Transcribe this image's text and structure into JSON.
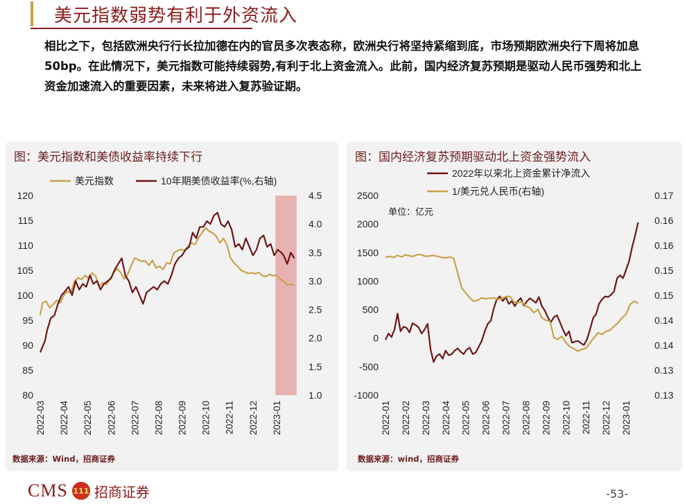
{
  "page": {
    "title": "美元指数弱势有利于外资流入",
    "body": "相比之下，包括欧洲央行行长拉加德在内的官员多次表态称，欧洲央行将坚持紧缩到底，市场预期欧洲央行下周将加息50bp。在此情况下，美元指数可能持续弱势,有利于北上资金流入。此前，国内经济复苏预期是驱动人民币强势和北上资金加速流入的重要因素，未来将进入复苏验证期。",
    "footer": {
      "brand": "CMS",
      "badge": "111",
      "brand_cn": "招商证券",
      "page_number": "-53-"
    }
  },
  "chart_data": [
    {
      "type": "line",
      "title": "图：美元指数和美债收益率持续下行",
      "source": "数据来源：Wind，招商证券",
      "x_ticks": [
        "2022-03",
        "2022-04",
        "2022-05",
        "2022-06",
        "2022-07",
        "2022-08",
        "2022-09",
        "2022-10",
        "2022-11",
        "2022-12",
        "2023-01"
      ],
      "x_range": [
        0,
        11
      ],
      "y_left": {
        "range": [
          80,
          120
        ],
        "ticks": [
          80,
          85,
          90,
          95,
          100,
          105,
          110,
          115,
          120
        ]
      },
      "y_right": {
        "range": [
          1.0,
          4.5
        ],
        "ticks": [
          "1.0",
          "1.5",
          "2.0",
          "2.5",
          "3.0",
          "3.5",
          "4.0",
          "4.5"
        ]
      },
      "highlight": {
        "x_start": 9.95,
        "x_end": 10.85,
        "color": "#e6a7a7"
      },
      "series": [
        {
          "name": "美元指数",
          "axis": "left",
          "color": "#c8a24a",
          "x": [
            0,
            0.1,
            0.25,
            0.4,
            0.55,
            0.7,
            0.85,
            1.0,
            1.15,
            1.3,
            1.45,
            1.6,
            1.75,
            1.9,
            2.05,
            2.2,
            2.35,
            2.5,
            2.65,
            2.8,
            2.95,
            3.1,
            3.25,
            3.4,
            3.55,
            3.7,
            3.85,
            4.0,
            4.15,
            4.3,
            4.45,
            4.6,
            4.75,
            4.9,
            5.05,
            5.2,
            5.35,
            5.5,
            5.65,
            5.8,
            5.95,
            6.1,
            6.25,
            6.4,
            6.55,
            6.7,
            6.85,
            7.0,
            7.15,
            7.3,
            7.45,
            7.6,
            7.75,
            7.9,
            8.05,
            8.2,
            8.35,
            8.5,
            8.65,
            8.8,
            8.95,
            9.1,
            9.25,
            9.4,
            9.55,
            9.7,
            9.85,
            10.0,
            10.15,
            10.3,
            10.45,
            10.6,
            10.75
          ],
          "y": [
            96,
            98.5,
            98.8,
            97.5,
            98.2,
            99,
            98.5,
            100,
            100.8,
            100.5,
            102.8,
            103.5,
            103.2,
            104,
            103.3,
            104.5,
            103.8,
            101.8,
            102.5,
            102.2,
            103.2,
            104.5,
            105.3,
            104.6,
            103.3,
            104.2,
            106,
            107.5,
            107.1,
            106.8,
            106.9,
            106,
            107,
            105.5,
            105.8,
            105.2,
            106.5,
            106.3,
            108.5,
            108.9,
            109.2,
            109,
            109.8,
            110.5,
            110.2,
            111.5,
            112.6,
            113.5,
            112.8,
            112.5,
            111.8,
            110.5,
            111.4,
            110.2,
            107.5,
            106.5,
            105.8,
            105,
            104.7,
            104.4,
            104.5,
            104.3,
            104.6,
            103.9,
            103.8,
            104.2,
            103.9,
            104.1,
            103.2,
            102.8,
            102.1,
            102.2,
            102
          ]
        },
        {
          "name": "10年期美债收益率(%,右轴)",
          "axis": "right",
          "color": "#6e1414",
          "x": [
            0,
            0.1,
            0.2,
            0.3,
            0.45,
            0.6,
            0.75,
            0.9,
            1.05,
            1.2,
            1.35,
            1.5,
            1.65,
            1.8,
            1.95,
            2.1,
            2.25,
            2.4,
            2.55,
            2.7,
            2.85,
            3.0,
            3.15,
            3.3,
            3.45,
            3.6,
            3.75,
            3.9,
            4.05,
            4.2,
            4.35,
            4.5,
            4.65,
            4.8,
            4.95,
            5.1,
            5.25,
            5.4,
            5.55,
            5.7,
            5.85,
            6.0,
            6.15,
            6.3,
            6.45,
            6.6,
            6.75,
            6.9,
            7.05,
            7.2,
            7.35,
            7.5,
            7.65,
            7.8,
            7.95,
            8.1,
            8.25,
            8.4,
            8.55,
            8.7,
            8.85,
            9.0,
            9.15,
            9.3,
            9.45,
            9.6,
            9.75,
            9.9,
            10.05,
            10.2,
            10.3,
            10.45,
            10.6,
            10.75
          ],
          "y": [
            1.75,
            1.85,
            1.95,
            2.15,
            2.35,
            2.4,
            2.6,
            2.75,
            2.82,
            2.9,
            2.75,
            3.0,
            2.85,
            2.95,
            2.9,
            3.1,
            2.95,
            3.0,
            2.85,
            2.95,
            3.0,
            3.05,
            3.2,
            3.3,
            3.4,
            3.1,
            3.0,
            2.8,
            2.9,
            2.75,
            2.6,
            2.8,
            2.85,
            2.9,
            2.85,
            2.95,
            3.0,
            2.95,
            3.1,
            3.3,
            3.4,
            3.45,
            3.55,
            3.6,
            3.85,
            3.75,
            3.95,
            3.95,
            4.05,
            4.0,
            4.15,
            4.2,
            4.0,
            3.95,
            4.05,
            3.9,
            3.6,
            3.65,
            3.55,
            3.75,
            3.6,
            3.45,
            3.55,
            3.75,
            3.8,
            3.6,
            3.65,
            3.45,
            3.55,
            3.5,
            3.45,
            3.3,
            3.5,
            3.4
          ]
        }
      ]
    },
    {
      "type": "line",
      "title": "图：国内经济复苏预期驱动北上资金强势流入",
      "source": "数据来源：wind，招商证券",
      "unit_label": "单位：亿元",
      "x_ticks": [
        "2022-01",
        "2022-02",
        "2022-03",
        "2022-04",
        "2022-05",
        "2022-06",
        "2022-07",
        "2022-08",
        "2022-09",
        "2022-10",
        "2022-11",
        "2022-12",
        "2023-01"
      ],
      "x_range": [
        0,
        13
      ],
      "y_left": {
        "range": [
          -1000,
          2500
        ],
        "ticks": [
          -1000,
          -500,
          0,
          500,
          1000,
          1500,
          2000,
          2500
        ]
      },
      "y_right": {
        "range": [
          0.13,
          0.17
        ],
        "ticks": [
          "0.13",
          "0.13",
          "0.14",
          "0.14",
          "0.15",
          "0.15",
          "0.16",
          "0.16",
          "0.17"
        ]
      },
      "series": [
        {
          "name": "2022年以来北上资金累计净流入",
          "axis": "left",
          "color": "#6e1414",
          "x": [
            0,
            0.15,
            0.3,
            0.45,
            0.6,
            0.75,
            0.9,
            1.05,
            1.2,
            1.35,
            1.5,
            1.65,
            1.8,
            1.95,
            2.1,
            2.25,
            2.4,
            2.55,
            2.7,
            2.85,
            3.0,
            3.15,
            3.3,
            3.45,
            3.6,
            3.75,
            3.9,
            4.05,
            4.2,
            4.35,
            4.5,
            4.65,
            4.8,
            4.95,
            5.1,
            5.25,
            5.4,
            5.55,
            5.7,
            5.85,
            6.0,
            6.15,
            6.3,
            6.45,
            6.6,
            6.75,
            6.9,
            7.05,
            7.2,
            7.35,
            7.5,
            7.65,
            7.8,
            7.95,
            8.1,
            8.25,
            8.4,
            8.55,
            8.7,
            8.85,
            9.0,
            9.15,
            9.3,
            9.45,
            9.6,
            9.75,
            9.9,
            10.05,
            10.2,
            10.35,
            10.5,
            10.65,
            10.8,
            10.95,
            11.1,
            11.25,
            11.4,
            11.55,
            11.7,
            11.85,
            12.0,
            12.15,
            12.3,
            12.45,
            12.6
          ],
          "y": [
            -30,
            80,
            20,
            150,
            430,
            120,
            200,
            180,
            100,
            260,
            230,
            190,
            80,
            150,
            250,
            -200,
            -420,
            -310,
            -280,
            -360,
            -220,
            -300,
            -280,
            -220,
            -180,
            -240,
            -280,
            -200,
            -170,
            -280,
            -250,
            -150,
            -50,
            120,
            250,
            300,
            520,
            680,
            730,
            650,
            720,
            600,
            650,
            560,
            650,
            700,
            570,
            640,
            700,
            660,
            620,
            720,
            560,
            480,
            360,
            280,
            370,
            400,
            280,
            150,
            40,
            120,
            -80,
            -60,
            -50,
            -90,
            -120,
            -20,
            150,
            350,
            420,
            600,
            680,
            730,
            720,
            760,
            820,
            1050,
            1100,
            1050,
            1200,
            1350,
            1600,
            1800,
            2030
          ]
        },
        {
          "name": "1/美元兑人民币(右轴)",
          "axis": "right",
          "color": "#c8a24a",
          "x": [
            0,
            0.2,
            0.4,
            0.6,
            0.8,
            1.0,
            1.2,
            1.4,
            1.6,
            1.8,
            2.0,
            2.2,
            2.4,
            2.6,
            2.8,
            3.0,
            3.2,
            3.4,
            3.6,
            3.8,
            4.0,
            4.2,
            4.4,
            4.6,
            4.8,
            5.0,
            5.2,
            5.4,
            5.6,
            5.8,
            6.0,
            6.2,
            6.4,
            6.6,
            6.8,
            7.0,
            7.2,
            7.4,
            7.6,
            7.8,
            8.0,
            8.2,
            8.4,
            8.6,
            8.8,
            9.0,
            9.2,
            9.4,
            9.6,
            9.8,
            10.0,
            10.2,
            10.4,
            10.6,
            10.8,
            11.0,
            11.2,
            11.4,
            11.6,
            11.8,
            12.0,
            12.2,
            12.4,
            12.6
          ],
          "y": [
            0.1576,
            0.1578,
            0.1576,
            0.158,
            0.1577,
            0.1581,
            0.1579,
            0.1578,
            0.1582,
            0.1581,
            0.1578,
            0.1579,
            0.158,
            0.1578,
            0.1576,
            0.1575,
            0.1577,
            0.1574,
            0.1545,
            0.1515,
            0.1505,
            0.1495,
            0.1488,
            0.149,
            0.1495,
            0.1493,
            0.1494,
            0.1495,
            0.1492,
            0.1494,
            0.1497,
            0.1498,
            0.1487,
            0.1485,
            0.1487,
            0.1478,
            0.1475,
            0.1465,
            0.1472,
            0.1455,
            0.145,
            0.1448,
            0.1415,
            0.1412,
            0.1418,
            0.1405,
            0.1397,
            0.1393,
            0.1388,
            0.1392,
            0.1394,
            0.1405,
            0.1415,
            0.1425,
            0.1422,
            0.1428,
            0.143,
            0.1438,
            0.1445,
            0.1455,
            0.1462,
            0.1482,
            0.1488,
            0.1484
          ]
        }
      ]
    }
  ]
}
